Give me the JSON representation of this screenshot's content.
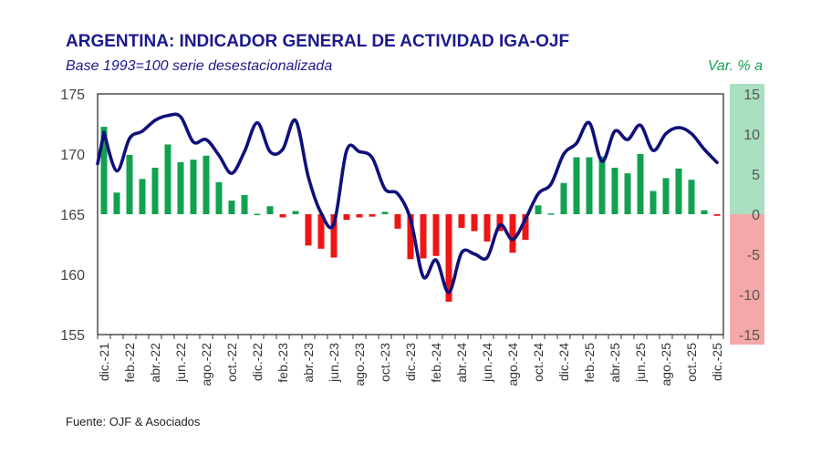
{
  "chart_data": {
    "type": "bar+line",
    "title": "ARGENTINA: INDICADOR GENERAL DE ACTIVIDAD IGA-OJF",
    "subtitle": "Base 1993=100 serie desestacionalizada",
    "right_axis_label": "Var. % a",
    "source": "Fuente: OJF & Asociados",
    "left_axis": {
      "ylim": [
        155,
        175
      ],
      "ticks": [
        "175",
        "170",
        "165",
        "160",
        "155"
      ]
    },
    "right_axis": {
      "ylim": [
        -15,
        15
      ],
      "ticks": [
        "15",
        "10",
        "5",
        "0",
        "-5",
        "-10",
        "-15"
      ]
    },
    "x_tick_labels": [
      "dic.-21",
      "feb.-22",
      "abr.-22",
      "jun.-22",
      "ago.-22",
      "oct.-22",
      "dic.-22",
      "feb.-23",
      "abr.-23",
      "jun.-23",
      "ago.-23",
      "oct.-23",
      "dic.-23",
      "feb.-24",
      "abr.-24",
      "jun.-24",
      "ago.-24",
      "oct.-24",
      "dic.-24",
      "feb.-25",
      "abr.-25",
      "jun.-25",
      "ago.-25",
      "oct.-25",
      "dic.-25"
    ],
    "series": [
      {
        "kind": "line",
        "axis": "left",
        "color": "#10107a",
        "values": [
          171.8,
          168.6,
          171.3,
          171.9,
          172.8,
          173.2,
          173.1,
          171.0,
          171.2,
          169.9,
          168.4,
          170.2,
          172.6,
          170.2,
          170.4,
          172.8,
          168.1,
          165.1,
          164.2,
          170.3,
          170.2,
          169.7,
          167.1,
          166.7,
          164.6,
          159.8,
          161.2,
          158.5,
          161.8,
          161.7,
          161.4,
          164.1,
          162.9,
          164.6,
          166.7,
          167.5,
          170.0,
          170.9,
          172.6,
          169.4,
          171.9,
          171.2,
          172.4,
          170.3,
          171.7,
          172.2,
          171.7,
          170.4,
          169.3
        ]
      },
      {
        "kind": "bar",
        "axis": "right",
        "values": [
          10.9,
          2.7,
          7.4,
          4.4,
          5.8,
          8.7,
          6.5,
          6.8,
          7.3,
          4.0,
          1.7,
          2.4,
          0.05,
          1.0,
          -0.4,
          0.4,
          -3.9,
          -4.3,
          -5.4,
          -0.7,
          -0.4,
          -0.3,
          0.3,
          -1.8,
          -5.6,
          -5.5,
          -5.2,
          -10.9,
          -1.7,
          -2.1,
          -3.4,
          -2.1,
          -4.8,
          -3.2,
          1.1,
          0.1,
          3.9,
          7.1,
          7.1,
          7.2,
          5.8,
          5.1,
          7.5,
          2.9,
          4.5,
          5.7,
          4.3,
          0.5,
          -0.2
        ]
      }
    ],
    "colors": {
      "positive": "#12a150",
      "negative": "#ee1515",
      "title": "#1a1a8c",
      "band_positive": "#a8e0c0",
      "band_negative": "#f5a8a8"
    }
  }
}
